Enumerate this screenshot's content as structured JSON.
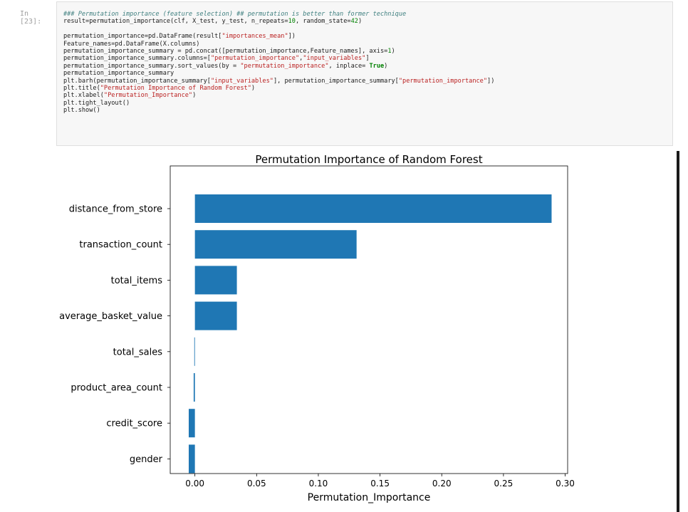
{
  "cell": {
    "prompt": "In [23]:",
    "code_lines": [
      [
        {
          "t": "### Permutation importance (feature selection) ## permutation is better than former technique",
          "c": "cm"
        }
      ],
      [
        {
          "t": "result=permutation_importance(clf, X_test, y_test, n_repeats="
        },
        {
          "t": "10",
          "c": "nu"
        },
        {
          "t": ", random_state="
        },
        {
          "t": "42",
          "c": "nu"
        },
        {
          "t": ")"
        }
      ],
      [
        {
          "t": ""
        }
      ],
      [
        {
          "t": "permutation_importance=pd.DataFrame(result["
        },
        {
          "t": "\"importances_mean\"",
          "c": "st"
        },
        {
          "t": "])"
        }
      ],
      [
        {
          "t": "Feature_names=pd.DataFrame(X.columns)"
        }
      ],
      [
        {
          "t": "permutation_importance_summary = pd.concat([permutation_importance,Feature_names], axis="
        },
        {
          "t": "1",
          "c": "nu"
        },
        {
          "t": ")"
        }
      ],
      [
        {
          "t": "permutation_importance_summary.columns=["
        },
        {
          "t": "\"permutation_importance\"",
          "c": "st"
        },
        {
          "t": ","
        },
        {
          "t": "\"input_variables\"",
          "c": "st"
        },
        {
          "t": "]"
        }
      ],
      [
        {
          "t": "permutation_importance_summary.sort_values(by = "
        },
        {
          "t": "\"permutation_importance\"",
          "c": "st"
        },
        {
          "t": ", inplace= "
        },
        {
          "t": "True",
          "c": "kw"
        },
        {
          "t": ")"
        }
      ],
      [
        {
          "t": "permutation_importance_summary"
        }
      ],
      [
        {
          "t": "plt.barh(permutation_importance_summary["
        },
        {
          "t": "\"input_variables\"",
          "c": "st"
        },
        {
          "t": "], permutation_importance_summary["
        },
        {
          "t": "\"permutation_importance\"",
          "c": "st"
        },
        {
          "t": "])"
        }
      ],
      [
        {
          "t": "plt.title("
        },
        {
          "t": "\"Permutation Importance of Random Forest\"",
          "c": "st"
        },
        {
          "t": ")"
        }
      ],
      [
        {
          "t": "plt.xlabel("
        },
        {
          "t": "\"Permutation_Importance\"",
          "c": "st"
        },
        {
          "t": ")"
        }
      ],
      [
        {
          "t": "plt.tight_layout()"
        }
      ],
      [
        {
          "t": "plt.show()"
        }
      ]
    ]
  },
  "chart_data": {
    "type": "bar",
    "orientation": "horizontal",
    "title": "Permutation Importance of Random Forest",
    "xlabel": "Permutation_Importance",
    "ylabel": "",
    "categories": [
      "distance_from_store",
      "transaction_count",
      "total_items",
      "average_basket_value",
      "total_sales",
      "product_area_count",
      "credit_score",
      "gender"
    ],
    "values": [
      0.289,
      0.131,
      0.034,
      0.034,
      -0.0005,
      -0.001,
      -0.005,
      -0.005
    ],
    "xlim": [
      -0.02,
      0.302
    ],
    "xticks": [
      0.0,
      0.05,
      0.1,
      0.15,
      0.2,
      0.25,
      0.3
    ],
    "xtick_labels": [
      "0.00",
      "0.05",
      "0.10",
      "0.15",
      "0.20",
      "0.25",
      "0.30"
    ],
    "bar_color": "#1f77b4",
    "grid": false
  }
}
